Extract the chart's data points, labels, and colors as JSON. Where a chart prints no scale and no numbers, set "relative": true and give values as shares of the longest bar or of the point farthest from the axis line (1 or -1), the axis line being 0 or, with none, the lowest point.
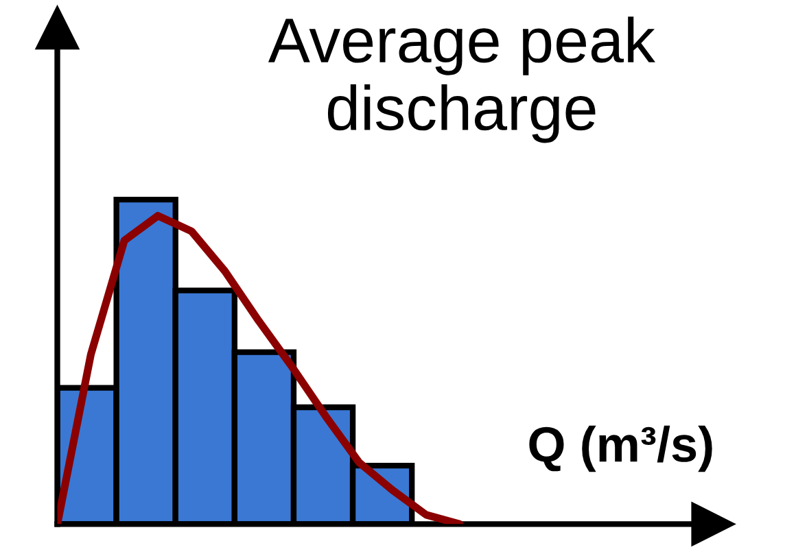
{
  "chart_data": [
    {
      "type": "bar",
      "title": "Average peak discharge",
      "xlabel": "Q (m³/s)",
      "relative": true,
      "categories": [
        null,
        null,
        null,
        null,
        null,
        null
      ],
      "series": [
        {
          "color": "#3a78d4",
          "values": [
            0.42,
            1,
            0.72,
            0.53,
            0.36,
            0.18
          ]
        }
      ]
    },
    {
      "type": "line",
      "relative": true,
      "categories": [
        null,
        null,
        null,
        null,
        null,
        null,
        null,
        null,
        null,
        null,
        null,
        null,
        null
      ],
      "series": [
        {
          "color": "#8b0000",
          "values": [
            0,
            0.55,
            0.92,
            1,
            0.95,
            0.82,
            0.66,
            0.51,
            0.35,
            0.2,
            0.11,
            0.03,
            0
          ]
        }
      ]
    }
  ]
}
